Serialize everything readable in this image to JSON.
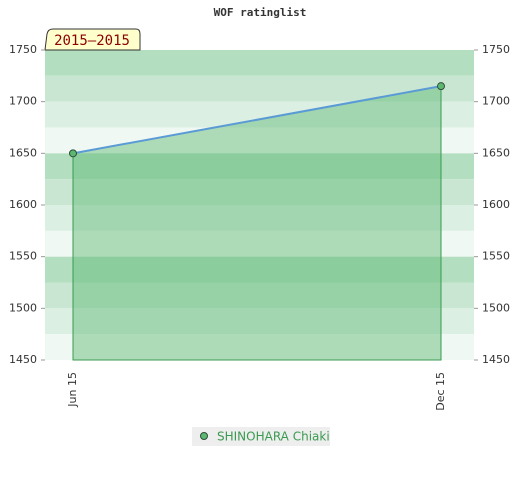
{
  "chart_data": {
    "type": "area",
    "title": "WOF ratinglist",
    "badge": "2015–2015",
    "categories": [
      "Jun 15",
      "Dec 15"
    ],
    "series": [
      {
        "name": "SHINOHARA Chiaki",
        "color": "#5cb870",
        "line_color": "#5b9bd5",
        "values": [
          1650,
          1715
        ]
      }
    ],
    "ylim": [
      1450,
      1750
    ],
    "yticks": [
      1450,
      1500,
      1550,
      1600,
      1650,
      1700,
      1750
    ],
    "y2lim": [
      1450,
      1750
    ],
    "y2ticks": [
      1450,
      1500,
      1550,
      1600,
      1650,
      1700,
      1750
    ],
    "legend": "bottom"
  }
}
